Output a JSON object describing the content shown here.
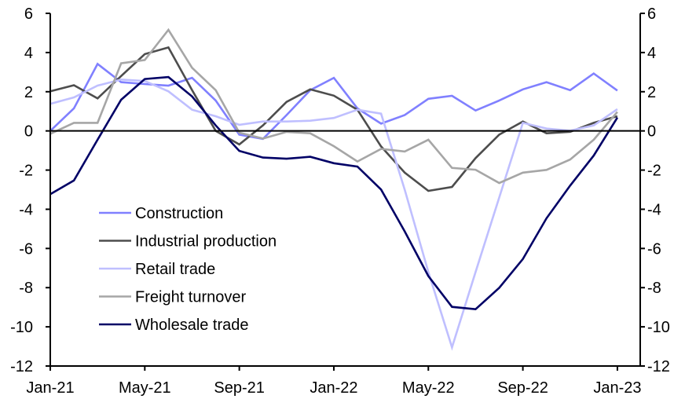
{
  "chart_data": {
    "type": "line",
    "title": "",
    "xlabel": "",
    "ylabel": "",
    "ylabel_right": "",
    "ylim": [
      -12,
      6
    ],
    "ylim_right": [
      -12,
      6
    ],
    "yticks": [
      6,
      4,
      2,
      0,
      -2,
      -4,
      -6,
      -8,
      -10,
      -12
    ],
    "grid": false,
    "legend_position": "bottom-left (inside)",
    "x": [
      "Jan-21",
      "Feb-21",
      "Mar-21",
      "Apr-21",
      "May-21",
      "Jun-21",
      "Jul-21",
      "Aug-21",
      "Sep-21",
      "Oct-21",
      "Nov-21",
      "Dec-21",
      "Jan-22",
      "Feb-22",
      "Mar-22",
      "Apr-22",
      "May-22",
      "Jun-22",
      "Jul-22",
      "Aug-22",
      "Sep-22",
      "Oct-22",
      "Nov-22",
      "Dec-22",
      "Jan-23"
    ],
    "xtick_labels": [
      "Jan-21",
      "May-21",
      "Sep-21",
      "Jan-22",
      "May-22",
      "Sep-22",
      "Jan-23"
    ],
    "xtick_indices": [
      0,
      4,
      8,
      12,
      16,
      20,
      24
    ],
    "series": [
      {
        "name": "Construction",
        "color": "#8080FF",
        "values": [
          0.0,
          1.15,
          3.42,
          2.49,
          2.39,
          2.31,
          2.71,
          1.55,
          -0.19,
          -0.41,
          0.81,
          2.08,
          2.71,
          1.15,
          0.37,
          0.81,
          1.64,
          1.79,
          1.04,
          1.55,
          2.12,
          2.49,
          2.08,
          2.93,
          2.06
        ]
      },
      {
        "name": "Industrial production",
        "color": "#4D4D4D",
        "values": [
          2.02,
          2.33,
          1.66,
          2.8,
          3.92,
          4.26,
          2.08,
          0.0,
          -0.69,
          0.28,
          1.48,
          2.12,
          1.8,
          1.08,
          -0.79,
          -2.13,
          -3.06,
          -2.86,
          -1.39,
          -0.19,
          0.48,
          -0.12,
          -0.05,
          0.41,
          0.75
        ]
      },
      {
        "name": "Retail trade",
        "color": "#BFBFFF",
        "values": [
          1.38,
          1.71,
          2.31,
          2.62,
          2.55,
          2.02,
          1.08,
          0.75,
          0.31,
          0.48,
          0.48,
          0.52,
          0.66,
          1.08,
          0.88,
          -3.0,
          -7.2,
          -11.05,
          -7.2,
          -3.4,
          0.41,
          0.12,
          0.01,
          0.28,
          1.11
        ]
      },
      {
        "name": "Freight turnover",
        "color": "#A6A6A6",
        "values": [
          -0.15,
          0.41,
          0.41,
          3.45,
          3.62,
          5.16,
          3.22,
          2.08,
          -0.09,
          -0.39,
          -0.05,
          -0.12,
          -0.78,
          -1.56,
          -0.92,
          -1.05,
          -0.45,
          -1.89,
          -1.98,
          -2.66,
          -2.13,
          -1.99,
          -1.46,
          -0.45,
          0.97
        ]
      },
      {
        "name": "Wholesale trade",
        "color": "#000066",
        "values": [
          -3.23,
          -2.53,
          -0.45,
          1.59,
          2.65,
          2.75,
          1.76,
          0.28,
          -1.02,
          -1.36,
          -1.42,
          -1.32,
          -1.65,
          -1.82,
          -2.99,
          -5.13,
          -7.41,
          -8.98,
          -9.1,
          -8.01,
          -6.54,
          -4.46,
          -2.79,
          -1.26,
          0.68
        ]
      }
    ]
  }
}
